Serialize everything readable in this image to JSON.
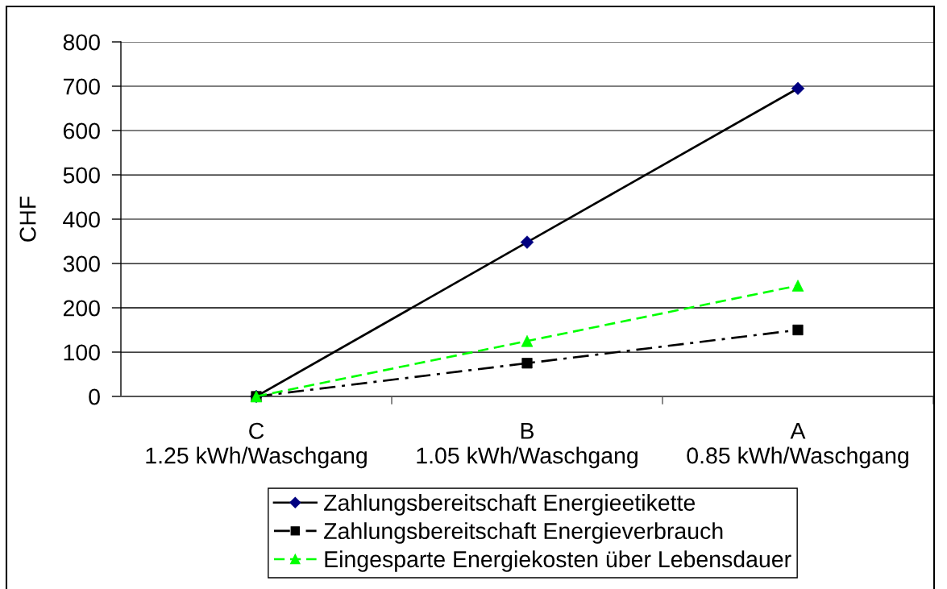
{
  "chart_data": {
    "type": "line",
    "ylabel": "CHF",
    "categories": [
      "C\n1.25 kWh/Waschgang",
      "B\n1.05 kWh/Waschgang",
      "A\n0.85 kWh/Waschgang"
    ],
    "series": [
      {
        "name": "Zahlungsbereitschaft Energieetikette",
        "color": "#000000",
        "colors": [
          "#000080",
          "#000080",
          "#000080"
        ],
        "marker": "diamond",
        "line_style": "solid",
        "values": [
          0,
          348,
          695
        ]
      },
      {
        "name": "Zahlungsbereitschaft Energieverbrauch",
        "color": "#000000",
        "marker": "square",
        "line_style": "dashdot",
        "values": [
          0,
          75,
          150
        ]
      },
      {
        "name": "Eingesparte Energiekosten über Lebensdauer",
        "color": "#00ff00",
        "marker": "triangle",
        "line_style": "dashed",
        "values": [
          0,
          125,
          250
        ]
      }
    ],
    "ylim": [
      0,
      800
    ],
    "yticks": [
      0,
      100,
      200,
      300,
      400,
      500,
      600,
      700,
      800
    ],
    "grid": "y",
    "legend": "bottom"
  }
}
